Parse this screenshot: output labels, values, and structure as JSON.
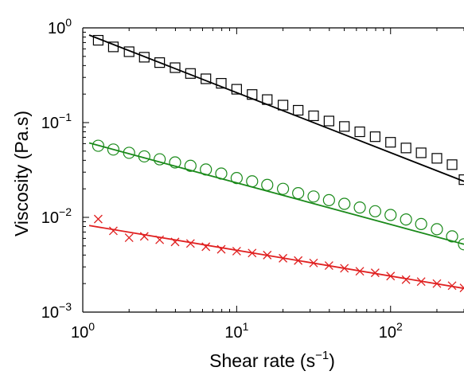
{
  "chart_data": {
    "type": "scatter",
    "title": "",
    "xlabel": "Shear rate (s",
    "xlabel_sup": "−1",
    "xlabel_close": ")",
    "ylabel": "Viscosity (Pa.s)",
    "xscale": "log",
    "yscale": "log",
    "xlim": [
      1,
      300
    ],
    "ylim": [
      0.001,
      1
    ],
    "grid": false,
    "legend": "none",
    "x_ticks": [
      {
        "value": 1,
        "base": "10",
        "exp": "0"
      },
      {
        "value": 10,
        "base": "10",
        "exp": "1"
      },
      {
        "value": 100,
        "base": "10",
        "exp": "2"
      }
    ],
    "y_ticks": [
      {
        "value": 1,
        "base": "10",
        "exp": "0"
      },
      {
        "value": 0.1,
        "base": "10",
        "exp": "−1"
      },
      {
        "value": 0.01,
        "base": "10",
        "exp": "−2"
      },
      {
        "value": 0.001,
        "base": "10",
        "exp": "−3"
      }
    ],
    "series": [
      {
        "marker": "square",
        "color": "#000000",
        "x": [
          1.26,
          1.58,
          2.0,
          2.51,
          3.16,
          3.98,
          5.01,
          6.31,
          7.94,
          10.0,
          12.6,
          15.8,
          20.0,
          25.1,
          31.6,
          39.8,
          50.1,
          63.1,
          79.4,
          100,
          126,
          158,
          200,
          251,
          300
        ],
        "y": [
          0.74,
          0.63,
          0.56,
          0.49,
          0.43,
          0.38,
          0.33,
          0.29,
          0.26,
          0.225,
          0.198,
          0.175,
          0.153,
          0.135,
          0.118,
          0.104,
          0.091,
          0.08,
          0.071,
          0.062,
          0.054,
          0.048,
          0.042,
          0.036,
          0.025
        ],
        "fit": {
          "x": [
            1.1,
            300
          ],
          "y": [
            0.84,
            0.024
          ]
        }
      },
      {
        "marker": "circle",
        "color": "#1a8a1a",
        "x": [
          1.26,
          1.58,
          2.0,
          2.51,
          3.16,
          3.98,
          5.01,
          6.31,
          7.94,
          10.0,
          12.6,
          15.8,
          20.0,
          25.1,
          31.6,
          39.8,
          50.1,
          63.1,
          79.4,
          100,
          126,
          158,
          200,
          251,
          300
        ],
        "y": [
          0.057,
          0.052,
          0.048,
          0.044,
          0.041,
          0.038,
          0.035,
          0.032,
          0.029,
          0.026,
          0.024,
          0.022,
          0.02,
          0.018,
          0.0166,
          0.0152,
          0.0139,
          0.0127,
          0.0116,
          0.0106,
          0.0095,
          0.0085,
          0.0075,
          0.0063,
          0.0052
        ],
        "fit": {
          "x": [
            1.1,
            300
          ],
          "y": [
            0.061,
            0.0052
          ]
        }
      },
      {
        "marker": "x",
        "color": "#e02020",
        "x": [
          1.26,
          1.58,
          2.0,
          2.51,
          3.16,
          3.98,
          5.01,
          6.31,
          7.94,
          10.0,
          12.6,
          15.8,
          20.0,
          25.1,
          31.6,
          39.8,
          50.1,
          63.1,
          79.4,
          100,
          126,
          158,
          200,
          251,
          300
        ],
        "y": [
          0.0096,
          0.0072,
          0.0061,
          0.0063,
          0.0058,
          0.0055,
          0.0053,
          0.0049,
          0.0046,
          0.0044,
          0.0042,
          0.004,
          0.0037,
          0.0035,
          0.0033,
          0.0031,
          0.0029,
          0.0027,
          0.0026,
          0.0024,
          0.0022,
          0.0021,
          0.002,
          0.0019,
          0.0018
        ],
        "fit": {
          "x": [
            1.1,
            300
          ],
          "y": [
            0.0082,
            0.00178
          ]
        }
      }
    ]
  }
}
